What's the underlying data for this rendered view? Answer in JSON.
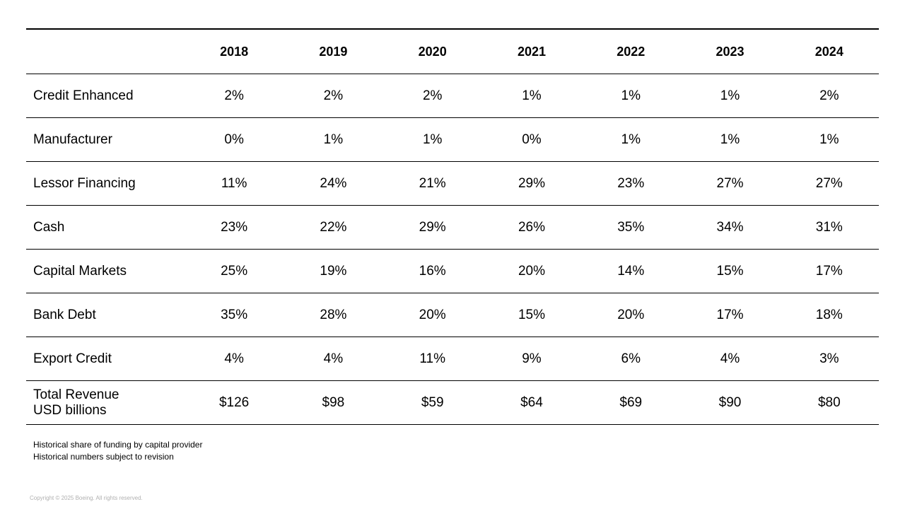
{
  "table": {
    "years": [
      "2018",
      "2019",
      "2020",
      "2021",
      "2022",
      "2023",
      "2024"
    ],
    "rows": [
      {
        "label": "Credit Enhanced",
        "values": [
          "2%",
          "2%",
          "2%",
          "1%",
          "1%",
          "1%",
          "2%"
        ]
      },
      {
        "label": "Manufacturer",
        "values": [
          "0%",
          "1%",
          "1%",
          "0%",
          "1%",
          "1%",
          "1%"
        ]
      },
      {
        "label": "Lessor Financing",
        "values": [
          "11%",
          "24%",
          "21%",
          "29%",
          "23%",
          "27%",
          "27%"
        ]
      },
      {
        "label": "Cash",
        "values": [
          "23%",
          "22%",
          "29%",
          "26%",
          "35%",
          "34%",
          "31%"
        ]
      },
      {
        "label": "Capital Markets",
        "values": [
          "25%",
          "19%",
          "16%",
          "20%",
          "14%",
          "15%",
          "17%"
        ]
      },
      {
        "label": "Bank Debt",
        "values": [
          "35%",
          "28%",
          "20%",
          "15%",
          "20%",
          "17%",
          "18%"
        ]
      },
      {
        "label": "Export Credit",
        "values": [
          "4%",
          "4%",
          "11%",
          "9%",
          "6%",
          "4%",
          "3%"
        ]
      }
    ],
    "total": {
      "label_line1": "Total Revenue",
      "label_line2": "USD billions",
      "values": [
        "$126",
        "$98",
        "$59",
        "$64",
        "$69",
        "$90",
        "$80"
      ]
    }
  },
  "notes": {
    "line1": "Historical share of funding by capital provider",
    "line2": "Historical numbers subject to revision"
  },
  "copyright": "Copyright © 2025 Boeing. All rights reserved."
}
